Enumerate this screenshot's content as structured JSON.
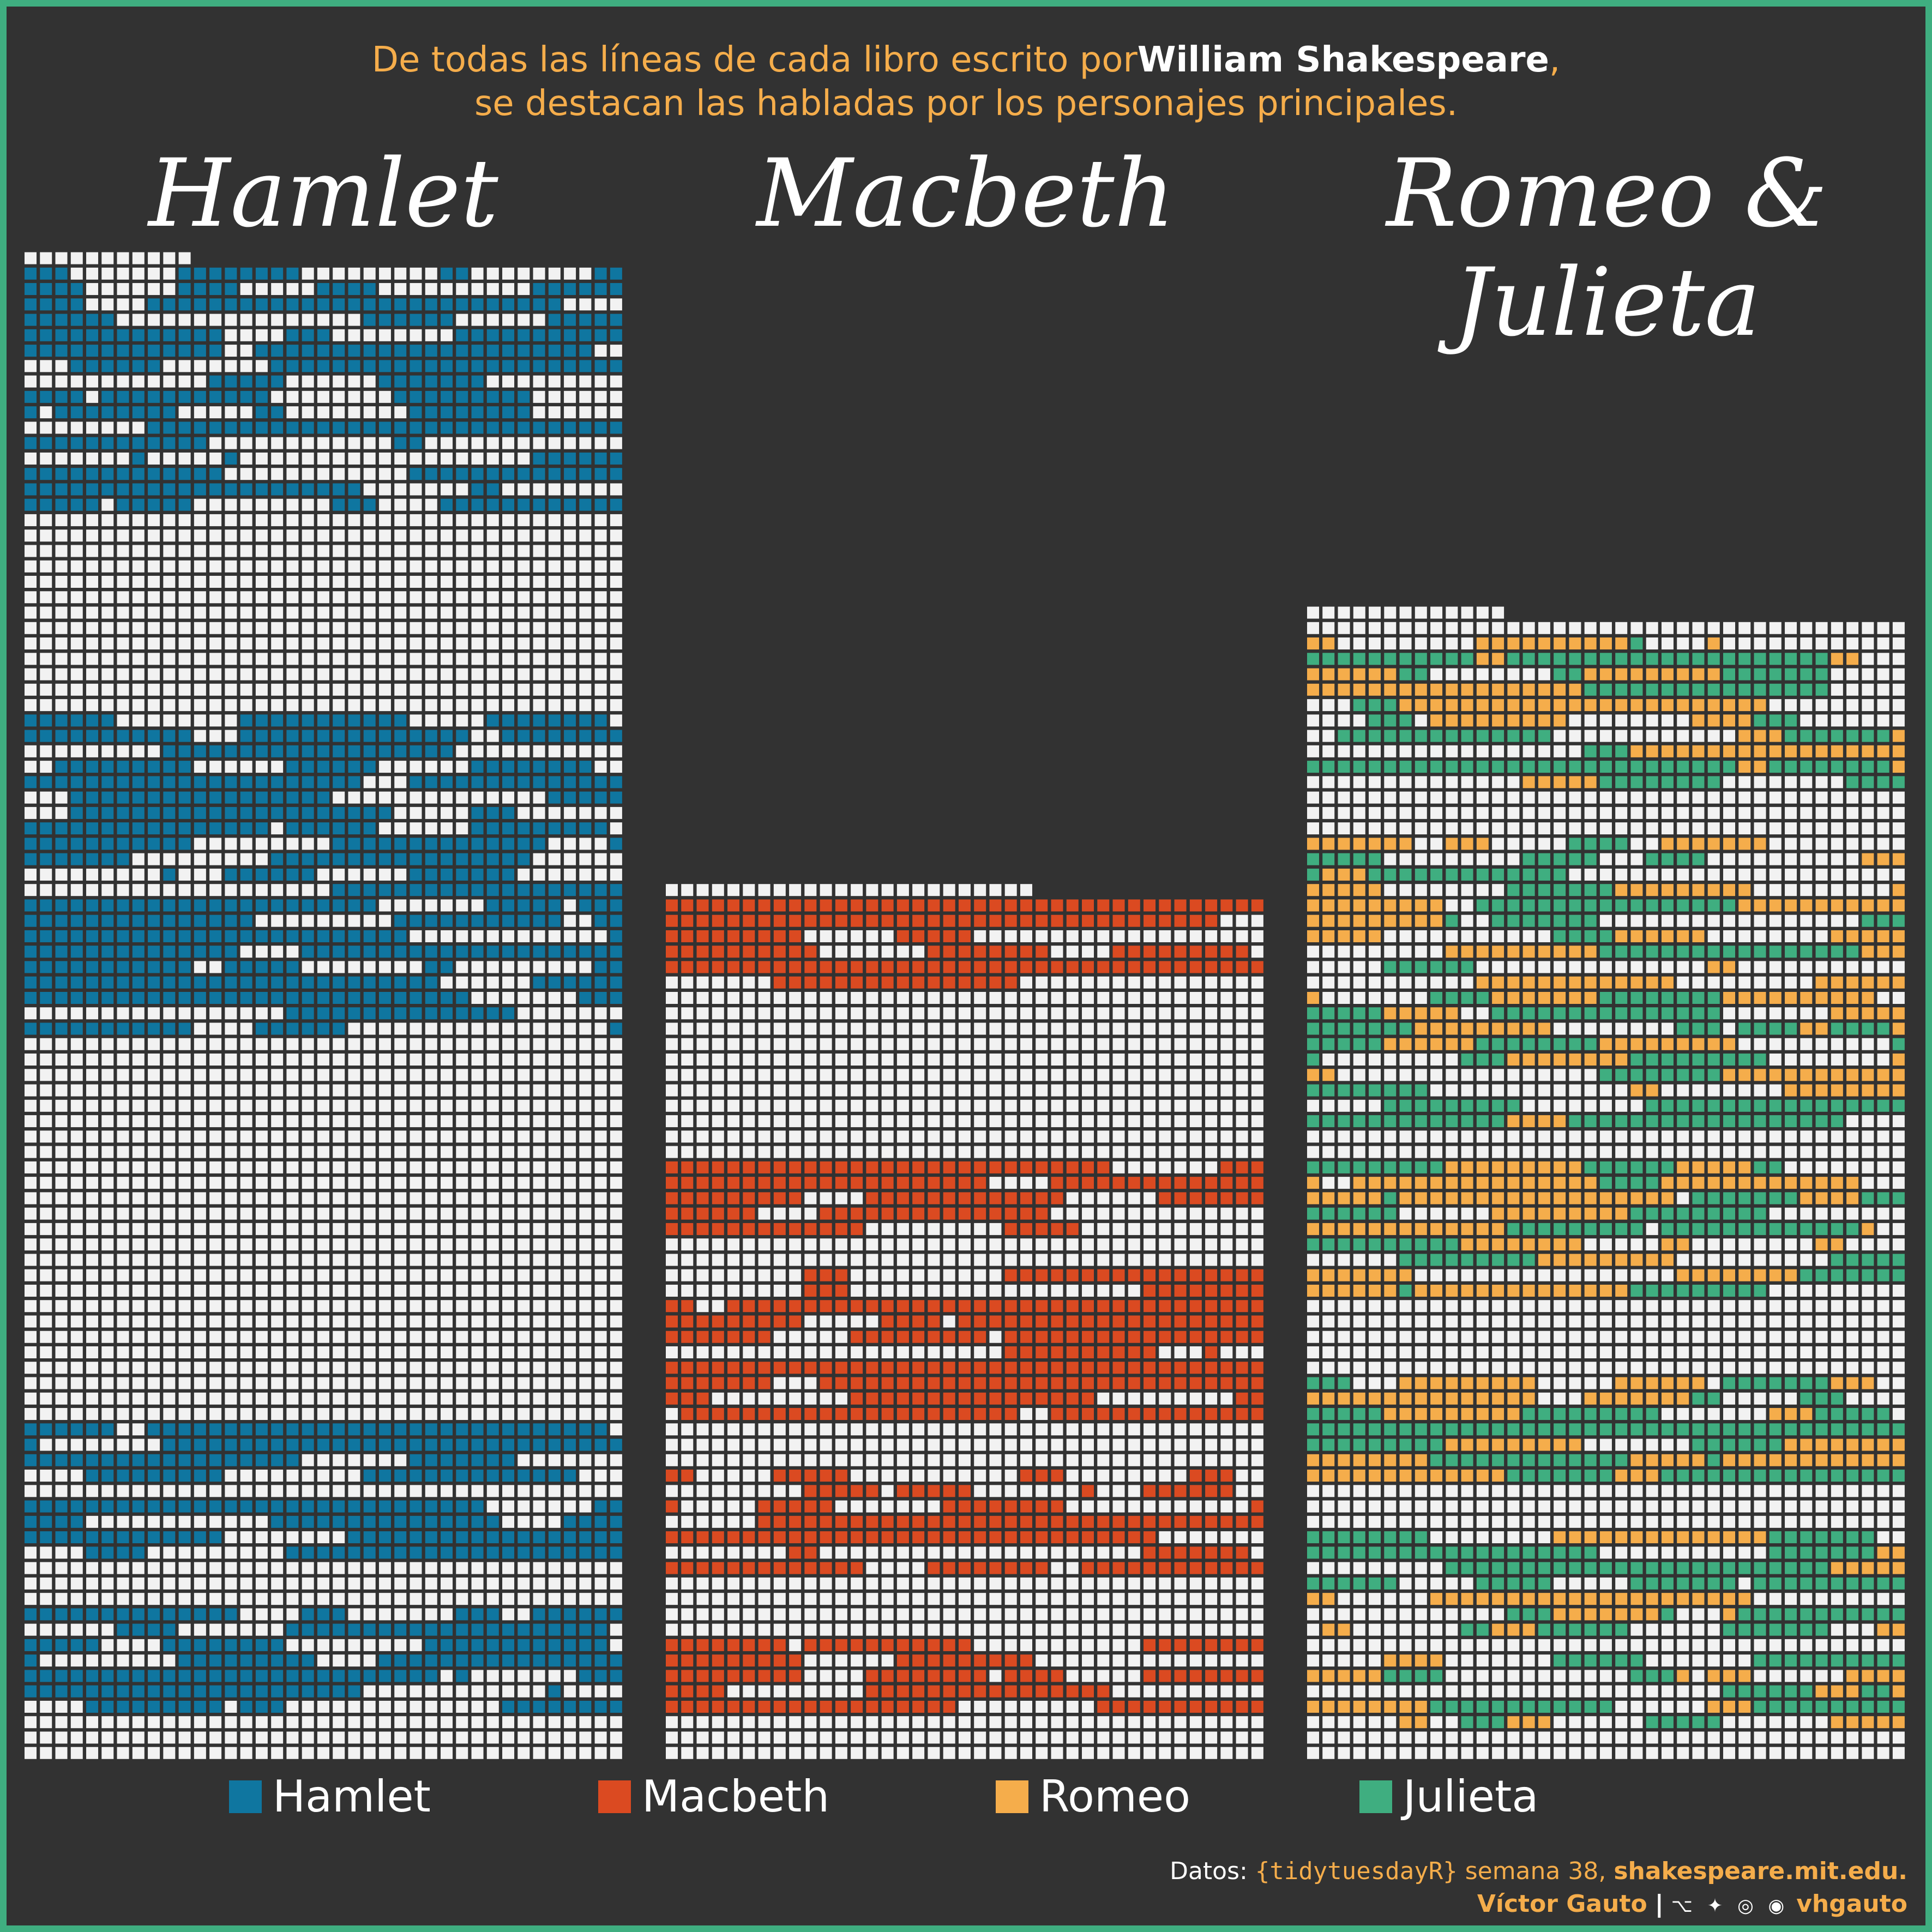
{
  "title": {
    "line1_before": "De todas las líneas de cada libro escrito por",
    "line1_author": "William Shakespeare",
    "line1_after": ",",
    "line2": "se destacan las habladas por los personajes principales."
  },
  "colors": {
    "background": "#323232",
    "frame": "#3fae80",
    "cell_empty": "#f2f2f2",
    "hamlet": "#0f76a0",
    "macbeth": "#db4a21",
    "romeo": "#f5ad4b",
    "julieta": "#3fae80"
  },
  "chart_data": {
    "type": "waffle",
    "description_unit": "each square = one line of the play",
    "columns_per_grid": 39,
    "plays": [
      {
        "title": "Hamlet",
        "full_rows": 97,
        "top_partial_cells": 11,
        "highlight_series": [
          "hamlet"
        ],
        "highlight_bands": [
          [
            1,
            16
          ],
          [
            30,
            50
          ],
          [
            76,
            79
          ],
          [
            81,
            84
          ],
          [
            88,
            94
          ]
        ]
      },
      {
        "title": "Macbeth",
        "full_rows": 56,
        "top_partial_cells": 24,
        "highlight_series": [
          "macbeth"
        ],
        "highlight_bands": [
          [
            1,
            6
          ],
          [
            18,
            22
          ],
          [
            25,
            34
          ],
          [
            38,
            44
          ],
          [
            49,
            53
          ]
        ]
      },
      {
        "title": "Romeo & Julieta",
        "full_rows": 74,
        "top_partial_cells": 13,
        "highlight_series": [
          "romeo",
          "julieta"
        ],
        "highlight_bands": [
          [
            2,
            11
          ],
          [
            15,
            33
          ],
          [
            36,
            44
          ],
          [
            50,
            56
          ],
          [
            60,
            66
          ],
          [
            68,
            72
          ]
        ]
      }
    ],
    "legend": [
      {
        "label": "Hamlet",
        "series": "hamlet"
      },
      {
        "label": "Macbeth",
        "series": "macbeth"
      },
      {
        "label": "Romeo",
        "series": "romeo"
      },
      {
        "label": "Julieta",
        "series": "julieta"
      }
    ]
  },
  "credits": {
    "datos_label": "Datos:",
    "source_pkg": "{tidytuesdayR}",
    "week": "semana 38,",
    "site": "shakespeare.mit.edu.",
    "author": "Víctor Gauto",
    "separator": "|",
    "social_icons": "⌥ ✦ ◎ ◉",
    "handle": "vhgauto"
  }
}
